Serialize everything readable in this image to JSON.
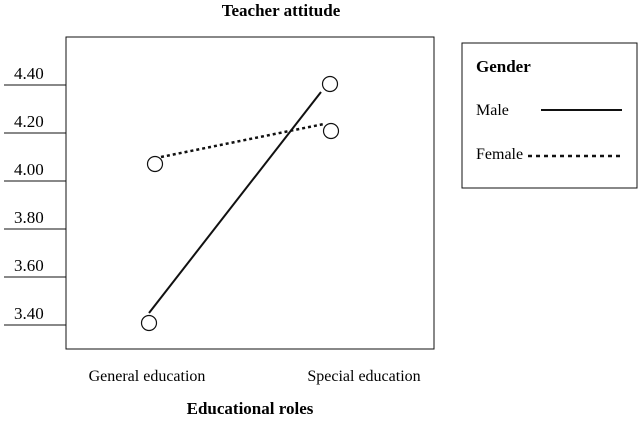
{
  "chart_data": {
    "type": "line",
    "title": "Teacher attitude",
    "xlabel": "Educational roles",
    "ylabel": "",
    "categories": [
      "General education",
      "Special education"
    ],
    "y_ticks": [
      "4.40",
      "4.20",
      "4.00",
      "3.80",
      "3.60",
      "3.40"
    ],
    "ylim": [
      3.3,
      4.6
    ],
    "legend": {
      "title": "Gender",
      "position": "right"
    },
    "series": [
      {
        "name": "Male",
        "values": [
          3.4,
          4.38
        ],
        "style": "solid",
        "color": "#111111"
      },
      {
        "name": "Female",
        "values": [
          4.05,
          4.19
        ],
        "style": "dotted",
        "color": "#111111"
      }
    ],
    "grid": false
  }
}
